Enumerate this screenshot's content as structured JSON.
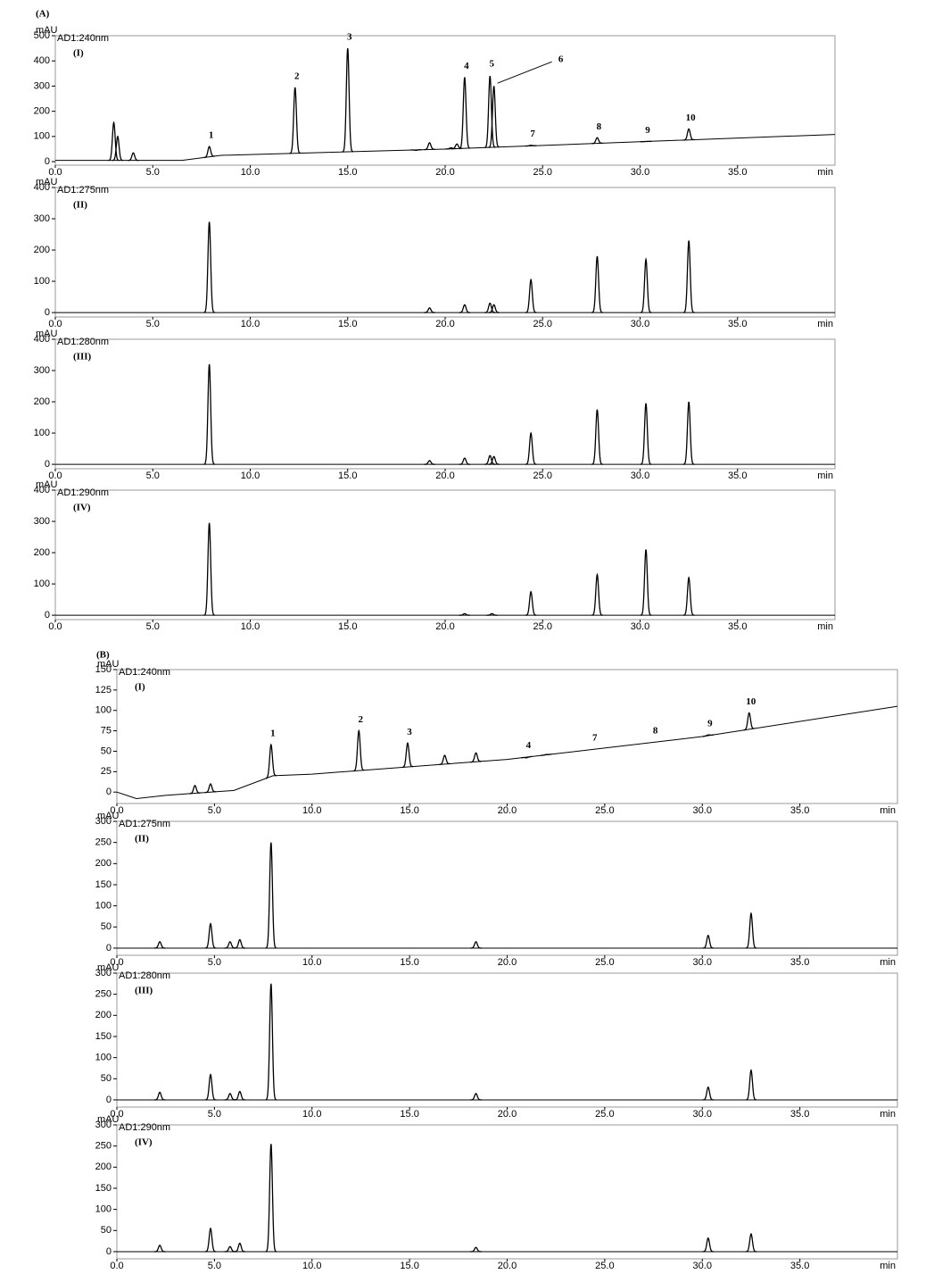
{
  "chart_data": [
    {
      "type": "chromatogram",
      "group": "(A)",
      "panel": "(I)",
      "subtitle": "AD1:240nm",
      "y_label": "mAU",
      "x_label": "min",
      "color": "#000000",
      "xlim": [
        0,
        40
      ],
      "xticks": [
        {
          "value": 0,
          "label": "0.0"
        },
        {
          "value": 5,
          "label": "5.0"
        },
        {
          "value": 10,
          "label": "10.0"
        },
        {
          "value": 15,
          "label": "15.0"
        },
        {
          "value": 20,
          "label": "20.0"
        },
        {
          "value": 25,
          "label": "25.0"
        },
        {
          "value": 30,
          "label": "30.0"
        },
        {
          "value": 35,
          "label": "35.0"
        }
      ],
      "ylim": [
        -14,
        500
      ],
      "yticks": [
        0,
        100,
        200,
        300,
        400,
        500
      ],
      "baseline": {
        "x": [
          0,
          6.5,
          8.5,
          20,
          40
        ],
        "values": [
          5,
          5,
          25,
          50,
          108
        ]
      },
      "peaks": {
        "x": [
          3.0,
          3.2,
          4.0,
          7.9,
          12.3,
          15.0,
          18.5,
          19.2,
          20.3,
          20.6,
          21.0,
          22.3,
          22.5,
          24.4,
          27.8,
          30.3,
          32.5
        ],
        "values": [
          155,
          100,
          35,
          60,
          295,
          450,
          45,
          75,
          55,
          70,
          335,
          340,
          300,
          65,
          95,
          80,
          130
        ]
      },
      "labels": {
        "texts": [
          "1",
          "2",
          "3",
          "4",
          "5",
          "6",
          "7",
          "8",
          "9",
          "10"
        ],
        "x": [
          7.9,
          12.3,
          15.0,
          21.0,
          22.3,
          22.5,
          24.4,
          27.8,
          30.3,
          32.5
        ]
      }
    },
    {
      "type": "chromatogram",
      "panel": "(II)",
      "subtitle": "AD1:275nm",
      "y_label": "mAU",
      "x_label": "min",
      "color": "#000000",
      "xlim": [
        0,
        40
      ],
      "xticks": [
        {
          "value": 0,
          "label": "0.0"
        },
        {
          "value": 5,
          "label": "5.0"
        },
        {
          "value": 10,
          "label": "10.0"
        },
        {
          "value": 15,
          "label": "15.0"
        },
        {
          "value": 20,
          "label": "20.0"
        },
        {
          "value": 25,
          "label": "25.0"
        },
        {
          "value": 30,
          "label": "30.0"
        },
        {
          "value": 35,
          "label": "35.0"
        }
      ],
      "ylim": [
        -14,
        400
      ],
      "yticks": [
        0,
        100,
        200,
        300,
        400
      ],
      "peaks": {
        "x": [
          7.9,
          19.2,
          21.0,
          22.3,
          22.5,
          24.4,
          27.8,
          30.3,
          32.5
        ],
        "values": [
          290,
          15,
          25,
          30,
          25,
          105,
          180,
          170,
          230
        ]
      }
    },
    {
      "type": "chromatogram",
      "panel": "(III)",
      "subtitle": "AD1:280nm",
      "y_label": "mAU",
      "x_label": "min",
      "color": "#000000",
      "xlim": [
        0,
        40
      ],
      "xticks": [
        {
          "value": 0,
          "label": "0.0"
        },
        {
          "value": 5,
          "label": "5.0"
        },
        {
          "value": 10,
          "label": "10.0"
        },
        {
          "value": 15,
          "label": "15.0"
        },
        {
          "value": 20,
          "label": "20.0"
        },
        {
          "value": 25,
          "label": "25.0"
        },
        {
          "value": 30,
          "label": "30.0"
        },
        {
          "value": 35,
          "label": "35.0"
        }
      ],
      "ylim": [
        -14,
        400
      ],
      "yticks": [
        0,
        100,
        200,
        300,
        400
      ],
      "peaks": {
        "x": [
          7.9,
          19.2,
          21.0,
          22.3,
          22.5,
          24.4,
          27.8,
          30.3,
          32.5
        ],
        "values": [
          320,
          12,
          20,
          28,
          25,
          100,
          175,
          195,
          200
        ]
      }
    },
    {
      "type": "chromatogram",
      "panel": "(IV)",
      "subtitle": "AD1:290nm",
      "y_label": "mAU",
      "x_label": "min",
      "color": "#000000",
      "xlim": [
        0,
        40
      ],
      "xticks": [
        {
          "value": 0,
          "label": "0.0"
        },
        {
          "value": 5,
          "label": "5.0"
        },
        {
          "value": 10,
          "label": "10.0"
        },
        {
          "value": 15,
          "label": "15.0"
        },
        {
          "value": 20,
          "label": "20.0"
        },
        {
          "value": 25,
          "label": "25.0"
        },
        {
          "value": 30,
          "label": "30.0"
        },
        {
          "value": 35,
          "label": "35.0"
        }
      ],
      "ylim": [
        -14,
        400
      ],
      "yticks": [
        0,
        100,
        200,
        300,
        400
      ],
      "peaks": {
        "x": [
          7.9,
          21.0,
          22.4,
          24.4,
          27.8,
          30.3,
          32.5
        ],
        "values": [
          295,
          5,
          5,
          75,
          130,
          210,
          120
        ]
      }
    },
    {
      "type": "chromatogram",
      "group": "(B)",
      "panel": "(I)",
      "subtitle": "AD1:240nm",
      "y_label": "mAU",
      "x_label": "min",
      "color": "#000000",
      "xlim": [
        0,
        40
      ],
      "xticks": [
        {
          "value": 0,
          "label": "0.0"
        },
        {
          "value": 5,
          "label": "5.0"
        },
        {
          "value": 10,
          "label": "10.0"
        },
        {
          "value": 15,
          "label": "15.0"
        },
        {
          "value": 20,
          "label": "20.0"
        },
        {
          "value": 25,
          "label": "25.0"
        },
        {
          "value": 30,
          "label": "30.0"
        },
        {
          "value": 35,
          "label": "35.0"
        }
      ],
      "ylim": [
        -14,
        150
      ],
      "yticks": [
        0,
        25,
        50,
        75,
        100,
        125,
        150
      ],
      "baseline": {
        "x": [
          0,
          1,
          2.5,
          6,
          8,
          10,
          20,
          30,
          40
        ],
        "values": [
          0,
          -8,
          -4,
          2,
          20,
          22,
          40,
          68,
          105
        ]
      },
      "peaks": {
        "x": [
          4.0,
          4.8,
          7.9,
          12.4,
          14.9,
          16.8,
          18.4,
          21.0,
          22.0,
          30.3,
          32.4
        ],
        "values": [
          8,
          10,
          58,
          75,
          60,
          45,
          48,
          42,
          46,
          70,
          97
        ]
      },
      "labels": {
        "texts": [
          "1",
          "2",
          "3",
          "4",
          "7",
          "8",
          "9",
          "10"
        ],
        "x": [
          7.9,
          12.4,
          14.9,
          21.0,
          24.4,
          27.5,
          30.3,
          32.4
        ]
      }
    },
    {
      "type": "chromatogram",
      "panel": "(II)",
      "subtitle": "AD1:275nm",
      "y_label": "mAU",
      "x_label": "min",
      "color": "#000000",
      "xlim": [
        0,
        40
      ],
      "xticks": [
        {
          "value": 0,
          "label": "0.0"
        },
        {
          "value": 5,
          "label": "5.0"
        },
        {
          "value": 10,
          "label": "10.0"
        },
        {
          "value": 15,
          "label": "15.0"
        },
        {
          "value": 20,
          "label": "20.0"
        },
        {
          "value": 25,
          "label": "25.0"
        },
        {
          "value": 30,
          "label": "30.0"
        },
        {
          "value": 35,
          "label": "35.0"
        }
      ],
      "ylim": [
        -17,
        300
      ],
      "yticks": [
        0,
        50,
        100,
        150,
        200,
        250,
        300
      ],
      "peaks": {
        "x": [
          2.2,
          4.8,
          5.8,
          6.3,
          7.9,
          18.4,
          30.3,
          32.5
        ],
        "values": [
          15,
          58,
          15,
          20,
          250,
          15,
          30,
          82
        ]
      }
    },
    {
      "type": "chromatogram",
      "panel": "(III)",
      "subtitle": "AD1:280nm",
      "y_label": "mAU",
      "x_label": "min",
      "color": "#000000",
      "xlim": [
        0,
        40
      ],
      "xticks": [
        {
          "value": 0,
          "label": "0.0"
        },
        {
          "value": 5,
          "label": "5.0"
        },
        {
          "value": 10,
          "label": "10.0"
        },
        {
          "value": 15,
          "label": "15.0"
        },
        {
          "value": 20,
          "label": "20.0"
        },
        {
          "value": 25,
          "label": "25.0"
        },
        {
          "value": 30,
          "label": "30.0"
        },
        {
          "value": 35,
          "label": "35.0"
        }
      ],
      "ylim": [
        -17,
        300
      ],
      "yticks": [
        0,
        50,
        100,
        150,
        200,
        250,
        300
      ],
      "peaks": {
        "x": [
          2.2,
          4.8,
          5.8,
          6.3,
          7.9,
          18.4,
          30.3,
          32.5
        ],
        "values": [
          18,
          60,
          15,
          20,
          275,
          15,
          30,
          70
        ]
      }
    },
    {
      "type": "chromatogram",
      "panel": "(IV)",
      "subtitle": "AD1:290nm",
      "y_label": "mAU",
      "x_label": "min",
      "color": "#000000",
      "xlim": [
        0,
        40
      ],
      "xticks": [
        {
          "value": 0,
          "label": "0.0"
        },
        {
          "value": 5,
          "label": "5.0"
        },
        {
          "value": 10,
          "label": "10.0"
        },
        {
          "value": 15,
          "label": "15.0"
        },
        {
          "value": 20,
          "label": "20.0"
        },
        {
          "value": 25,
          "label": "25.0"
        },
        {
          "value": 30,
          "label": "30.0"
        },
        {
          "value": 35,
          "label": "35.0"
        }
      ],
      "ylim": [
        -17,
        300
      ],
      "yticks": [
        0,
        50,
        100,
        150,
        200,
        250,
        300
      ],
      "peaks": {
        "x": [
          2.2,
          4.8,
          5.8,
          6.3,
          7.9,
          18.4,
          30.3,
          32.5
        ],
        "values": [
          15,
          55,
          12,
          20,
          255,
          10,
          32,
          42
        ]
      }
    }
  ]
}
